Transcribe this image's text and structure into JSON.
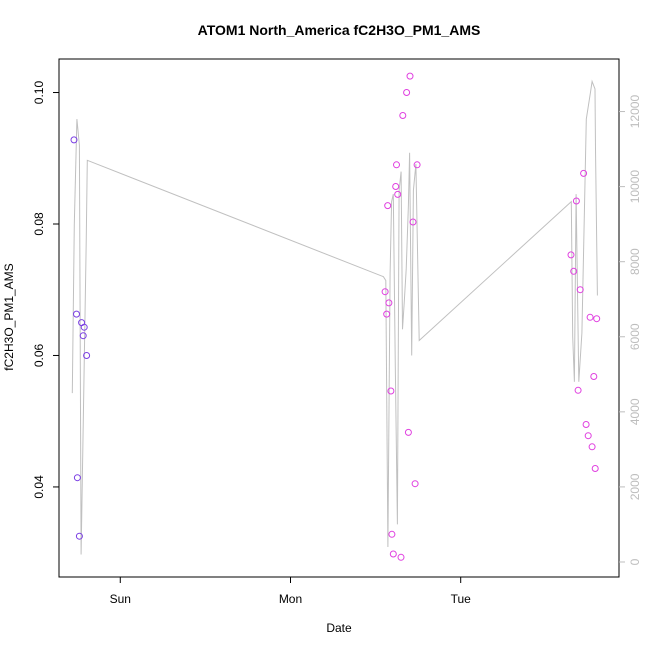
{
  "chart_data": {
    "type": "scatter",
    "title": "ATOM1 North_America fC2H3O_PM1_AMS",
    "xlabel": "Date",
    "ylabel": "fC2H3O_PM1_AMS",
    "x_unit": "days since Sat 00:00",
    "xlim": [
      0.64,
      3.93
    ],
    "ylim": [
      0.0263,
      0.1051
    ],
    "x_ticks": [
      {
        "value": 1,
        "label": "Sun"
      },
      {
        "value": 2,
        "label": "Mon"
      },
      {
        "value": 3,
        "label": "Tue"
      }
    ],
    "y_ticks": [
      0.04,
      0.06,
      0.08,
      0.1
    ],
    "y2_ticks": [
      0,
      2000,
      4000,
      6000,
      8000,
      10000,
      12000
    ],
    "y2lim": [
      -400,
      13400
    ],
    "grid": false,
    "series": [
      {
        "color": "#7b3fe4",
        "marker": "circle-open",
        "points": [
          [
            0.728,
            0.0928
          ],
          [
            0.743,
            0.0663
          ],
          [
            0.748,
            0.0414
          ],
          [
            0.76,
            0.0325
          ],
          [
            0.773,
            0.065
          ],
          [
            0.782,
            0.063
          ],
          [
            0.788,
            0.0643
          ],
          [
            0.802,
            0.06
          ]
        ]
      },
      {
        "color": "#e040e0",
        "marker": "circle-open",
        "points": [
          [
            2.556,
            0.0697
          ],
          [
            2.565,
            0.0663
          ],
          [
            2.571,
            0.0828
          ],
          [
            2.578,
            0.068
          ],
          [
            2.59,
            0.0546
          ],
          [
            2.596,
            0.0328
          ],
          [
            2.604,
            0.0298
          ],
          [
            2.618,
            0.0857
          ],
          [
            2.623,
            0.089
          ],
          [
            2.63,
            0.0845
          ],
          [
            2.649,
            0.0293
          ],
          [
            2.66,
            0.0965
          ],
          [
            2.682,
            0.1
          ],
          [
            2.693,
            0.0483
          ],
          [
            2.702,
            0.1025
          ],
          [
            2.72,
            0.0803
          ],
          [
            2.732,
            0.0405
          ],
          [
            2.744,
            0.089
          ],
          [
            3.648,
            0.0753
          ],
          [
            3.664,
            0.0728
          ],
          [
            3.68,
            0.0835
          ],
          [
            3.69,
            0.0547
          ],
          [
            3.702,
            0.07
          ],
          [
            3.722,
            0.0877
          ],
          [
            3.737,
            0.0495
          ],
          [
            3.749,
            0.0478
          ],
          [
            3.76,
            0.0658
          ],
          [
            3.772,
            0.0461
          ],
          [
            3.782,
            0.0568
          ],
          [
            3.79,
            0.0428
          ],
          [
            3.799,
            0.0656
          ]
        ]
      },
      {
        "color": "#c0c0c0",
        "axis": "right",
        "line_type": "line",
        "points": [
          [
            0.718,
            4500
          ],
          [
            0.73,
            9000
          ],
          [
            0.745,
            11800
          ],
          [
            0.76,
            11100
          ],
          [
            0.77,
            200
          ],
          [
            0.8,
            8500
          ],
          [
            0.806,
            10700
          ],
          [
            2.546,
            7600
          ],
          [
            2.56,
            7500
          ],
          [
            2.572,
            400
          ],
          [
            2.585,
            7700
          ],
          [
            2.594,
            9600
          ],
          [
            2.604,
            9800
          ],
          [
            2.616,
            5200
          ],
          [
            2.628,
            1000
          ],
          [
            2.638,
            9900
          ],
          [
            2.65,
            10400
          ],
          [
            2.658,
            6200
          ],
          [
            2.668,
            6900
          ],
          [
            2.68,
            7800
          ],
          [
            2.693,
            9500
          ],
          [
            2.7,
            10900
          ],
          [
            2.712,
            5500
          ],
          [
            2.722,
            9900
          ],
          [
            2.737,
            10600
          ],
          [
            2.756,
            5900
          ],
          [
            3.65,
            9600
          ],
          [
            3.658,
            6000
          ],
          [
            3.668,
            4800
          ],
          [
            3.678,
            9800
          ],
          [
            3.694,
            4800
          ],
          [
            3.712,
            6100
          ],
          [
            3.738,
            11800
          ],
          [
            3.762,
            12500
          ],
          [
            3.772,
            12800
          ],
          [
            3.789,
            12600
          ],
          [
            3.792,
            11000
          ],
          [
            3.803,
            7100
          ]
        ]
      }
    ]
  }
}
